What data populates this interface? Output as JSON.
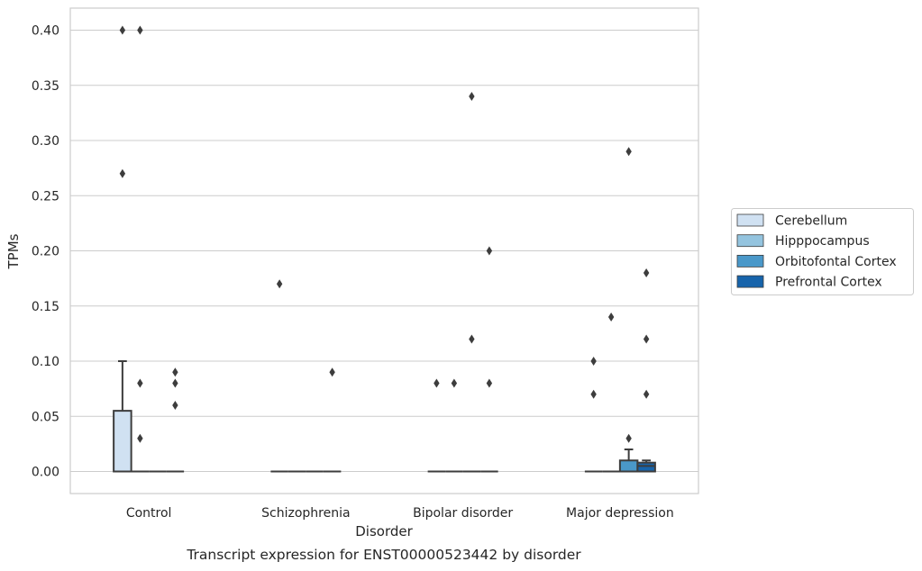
{
  "chart_data": {
    "type": "box",
    "title": "",
    "caption": "Transcript expression for ENST00000523442 by disorder",
    "xlabel": "Disorder",
    "ylabel": "TPMs",
    "ylim": [
      -0.02,
      0.42
    ],
    "yticks": [
      "0.00",
      "0.05",
      "0.10",
      "0.15",
      "0.20",
      "0.25",
      "0.30",
      "0.35",
      "0.40"
    ],
    "ytick_values": [
      0,
      0.05,
      0.1,
      0.15,
      0.2,
      0.25,
      0.3,
      0.35,
      0.4
    ],
    "grid": "horizontal",
    "legend_position": "right",
    "categories": [
      "Control",
      "Schizophrenia",
      "Bipolar disorder",
      "Major depression"
    ],
    "series": [
      {
        "name": "Cerebellum",
        "color": "#d0e1f2",
        "boxes": [
          {
            "q1": 0,
            "median": 0,
            "q3": 0.055,
            "whisker_low": 0,
            "whisker_high": 0.1,
            "outliers": [
              0.27,
              0.4
            ]
          },
          {
            "q1": 0,
            "median": 0,
            "q3": 0,
            "whisker_low": 0,
            "whisker_high": 0,
            "outliers": [
              0.17
            ]
          },
          {
            "q1": 0,
            "median": 0,
            "q3": 0,
            "whisker_low": 0,
            "whisker_high": 0,
            "outliers": [
              0.08
            ]
          },
          {
            "q1": 0,
            "median": 0,
            "q3": 0,
            "whisker_low": 0,
            "whisker_high": 0,
            "outliers": [
              0.07,
              0.1
            ]
          }
        ]
      },
      {
        "name": "Hipppocampus",
        "color": "#94c4df",
        "boxes": [
          {
            "q1": 0,
            "median": 0,
            "q3": 0,
            "whisker_low": 0,
            "whisker_high": 0,
            "outliers": [
              0.03,
              0.08,
              0.4
            ]
          },
          {
            "q1": 0,
            "median": 0,
            "q3": 0,
            "whisker_low": 0,
            "whisker_high": 0,
            "outliers": []
          },
          {
            "q1": 0,
            "median": 0,
            "q3": 0,
            "whisker_low": 0,
            "whisker_high": 0,
            "outliers": [
              0.08
            ]
          },
          {
            "q1": 0,
            "median": 0,
            "q3": 0,
            "whisker_low": 0,
            "whisker_high": 0,
            "outliers": [
              0.14
            ]
          }
        ]
      },
      {
        "name": "Orbitofontal Cortex",
        "color": "#4a98c9",
        "boxes": [
          {
            "q1": 0,
            "median": 0,
            "q3": 0,
            "whisker_low": 0,
            "whisker_high": 0,
            "outliers": []
          },
          {
            "q1": 0,
            "median": 0,
            "q3": 0,
            "whisker_low": 0,
            "whisker_high": 0,
            "outliers": []
          },
          {
            "q1": 0,
            "median": 0,
            "q3": 0,
            "whisker_low": 0,
            "whisker_high": 0,
            "outliers": [
              0.12,
              0.34
            ]
          },
          {
            "q1": 0,
            "median": 0,
            "q3": 0.01,
            "whisker_low": 0,
            "whisker_high": 0.02,
            "outliers": [
              0.03,
              0.29
            ]
          }
        ]
      },
      {
        "name": "Prefrontal Cortex",
        "color": "#1764ab",
        "boxes": [
          {
            "q1": 0,
            "median": 0,
            "q3": 0,
            "whisker_low": 0,
            "whisker_high": 0,
            "outliers": [
              0.06,
              0.08,
              0.09
            ]
          },
          {
            "q1": 0,
            "median": 0,
            "q3": 0,
            "whisker_low": 0,
            "whisker_high": 0,
            "outliers": [
              0.09
            ]
          },
          {
            "q1": 0,
            "median": 0,
            "q3": 0,
            "whisker_low": 0,
            "whisker_high": 0,
            "outliers": [
              0.08,
              0.2
            ]
          },
          {
            "q1": 0,
            "median": 0.005,
            "q3": 0.008,
            "whisker_low": 0,
            "whisker_high": 0.01,
            "outliers": [
              0.07,
              0.12,
              0.18
            ]
          }
        ]
      }
    ]
  }
}
